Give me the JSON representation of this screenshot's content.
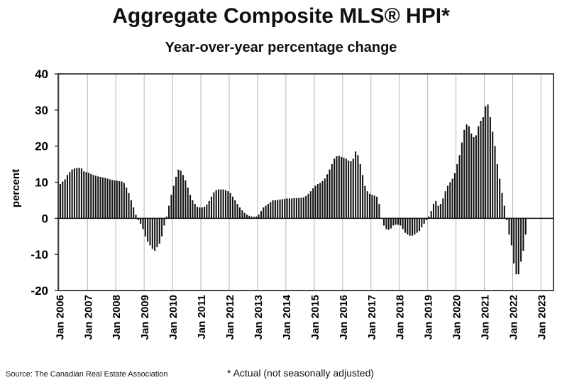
{
  "chart_data": {
    "type": "bar",
    "title": "Aggregate Composite MLS® HPI*",
    "subtitle": "Year-over-year percentage change",
    "ylabel": "percent",
    "xlabel": "",
    "ylim": [
      -20,
      40
    ],
    "yticks": [
      "40",
      "30",
      "20",
      "10",
      "0",
      "-10",
      "-20"
    ],
    "grid": "vertical lines at each January",
    "legend": "none",
    "bar_color": "#111111",
    "xtick_labels": [
      "Jan 2006",
      "Jan 2007",
      "Jan 2008",
      "Jan 2009",
      "Jan 2010",
      "Jan 2011",
      "Jan 2012",
      "Jan 2013",
      "Jan 2014",
      "Jan 2015",
      "Jan 2016",
      "Jan 2017",
      "Jan 2018",
      "Jan 2019",
      "Jan 2020",
      "Jan 2021",
      "Jan 2022",
      "Jan 2023"
    ],
    "start_month": "Jan 2006",
    "values": [
      9.5,
      10.2,
      10.8,
      12.0,
      12.8,
      13.5,
      13.8,
      13.9,
      14.0,
      13.8,
      13.0,
      12.8,
      12.6,
      12.3,
      12.0,
      11.8,
      11.6,
      11.5,
      11.3,
      11.2,
      11.0,
      10.8,
      10.6,
      10.5,
      10.4,
      10.3,
      10.2,
      9.8,
      8.5,
      7.0,
      5.0,
      3.0,
      1.0,
      -0.5,
      -1.5,
      -3.0,
      -5.0,
      -6.5,
      -7.5,
      -8.5,
      -9.0,
      -8.0,
      -7.0,
      -5.0,
      -2.0,
      0.5,
      3.5,
      6.5,
      9.0,
      11.5,
      13.5,
      13.2,
      12.0,
      10.5,
      8.5,
      6.5,
      5.0,
      4.0,
      3.2,
      3.0,
      3.0,
      3.2,
      3.8,
      4.8,
      6.0,
      7.2,
      7.8,
      8.0,
      8.0,
      8.0,
      7.8,
      7.5,
      7.0,
      6.0,
      5.0,
      4.0,
      3.0,
      2.2,
      1.5,
      1.0,
      0.7,
      0.5,
      0.4,
      0.5,
      1.0,
      2.0,
      3.0,
      3.5,
      4.0,
      4.5,
      5.0,
      5.0,
      5.1,
      5.2,
      5.3,
      5.4,
      5.5,
      5.5,
      5.5,
      5.6,
      5.6,
      5.6,
      5.7,
      5.8,
      6.2,
      6.8,
      7.5,
      8.3,
      9.0,
      9.5,
      9.8,
      10.3,
      11.0,
      12.2,
      13.5,
      15.0,
      16.5,
      17.2,
      17.3,
      17.0,
      16.8,
      16.5,
      16.0,
      15.8,
      16.5,
      18.5,
      17.5,
      15.0,
      12.0,
      9.0,
      7.5,
      6.8,
      6.5,
      6.3,
      6.0,
      4.0,
      0.0,
      -2.0,
      -3.0,
      -3.2,
      -2.8,
      -2.0,
      -1.8,
      -1.8,
      -2.0,
      -3.0,
      -4.0,
      -4.5,
      -4.8,
      -4.8,
      -4.5,
      -4.0,
      -3.5,
      -2.5,
      -1.5,
      -0.5,
      0.5,
      2.0,
      4.0,
      4.8,
      3.5,
      4.0,
      5.5,
      7.5,
      9.0,
      10.0,
      11.0,
      12.5,
      15.0,
      17.5,
      21.0,
      24.5,
      26.0,
      25.5,
      23.5,
      22.5,
      23.0,
      25.5,
      27.0,
      28.0,
      31.0,
      31.5,
      28.0,
      24.0,
      20.0,
      15.0,
      11.0,
      7.0,
      3.5,
      -0.5,
      -4.5,
      -7.5,
      -12.5,
      -15.5,
      -15.5,
      -12.0,
      -9.0,
      -4.5
    ]
  },
  "footnote": "* Actual (not seasonally adjusted)",
  "source": "Source: The Canadian Real Estate Association"
}
